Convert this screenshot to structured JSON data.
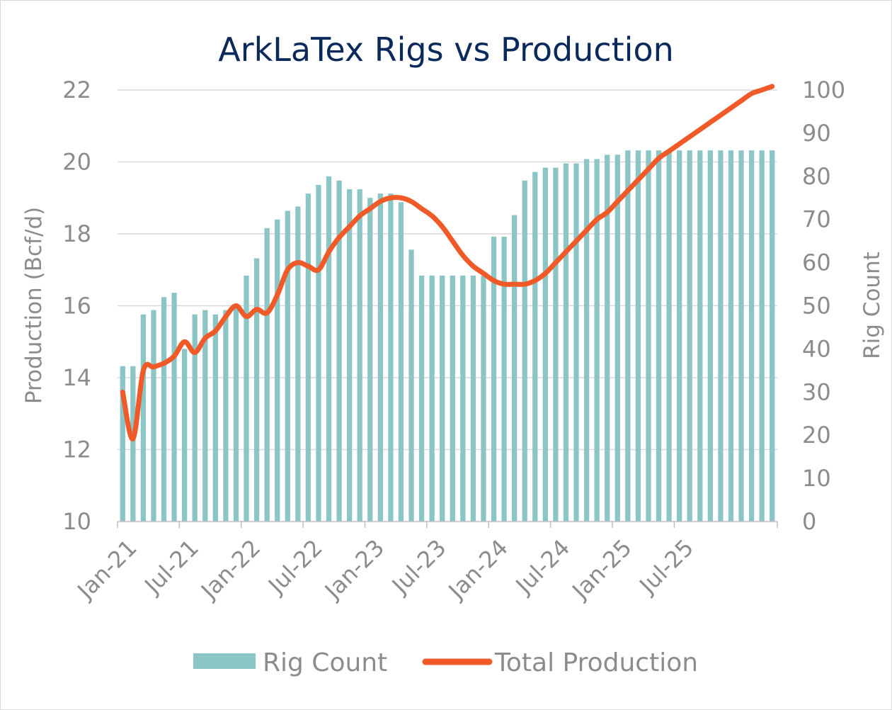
{
  "chart_data": {
    "type": "bar+line",
    "title": "ArkLaTex Rigs vs Production",
    "y_left": {
      "label": "Production (Bcf/d)",
      "range": [
        10,
        22
      ],
      "ticks": [
        "10",
        "12",
        "14",
        "16",
        "18",
        "20",
        "22"
      ]
    },
    "y_right": {
      "label": "Rig Count",
      "range": [
        0,
        100
      ],
      "ticks": [
        "0",
        "10",
        "20",
        "30",
        "40",
        "50",
        "60",
        "70",
        "80",
        "90",
        "100"
      ]
    },
    "x_tick_labels": [
      "Jan-21",
      "Jul-21",
      "Jan-22",
      "Jul-22",
      "Jan-23",
      "Jul-23",
      "Jan-24",
      "Jul-24",
      "Jan-25",
      "Jul-25"
    ],
    "series": [
      {
        "name": "Rig Count",
        "type": "bar",
        "axis": "right",
        "color": "#8cc5c6",
        "values": [
          36,
          36,
          48,
          49,
          52,
          53,
          40,
          48,
          49,
          48,
          49,
          50,
          57,
          61,
          68,
          70,
          72,
          73,
          76,
          78,
          80,
          79,
          77,
          77,
          75,
          76,
          76,
          74,
          63,
          57,
          57,
          57,
          57,
          57,
          57,
          57,
          66,
          66,
          71,
          79,
          81,
          82,
          82,
          83,
          83,
          84,
          84,
          85,
          85,
          86,
          86,
          86,
          86,
          86,
          86,
          86,
          86,
          86,
          86,
          86,
          86,
          86,
          86,
          86
        ]
      },
      {
        "name": "Total Production",
        "type": "line",
        "axis": "left",
        "color": "#f05a28",
        "values": [
          13.6,
          12.3,
          14.2,
          14.3,
          14.4,
          14.6,
          15.0,
          14.7,
          15.1,
          15.3,
          15.7,
          16.0,
          15.7,
          15.9,
          15.8,
          16.3,
          17.0,
          17.2,
          17.1,
          17.0,
          17.5,
          17.9,
          18.2,
          18.5,
          18.7,
          18.9,
          19.0,
          19.0,
          18.9,
          18.7,
          18.5,
          18.2,
          17.8,
          17.4,
          17.1,
          16.9,
          16.7,
          16.6,
          16.6,
          16.6,
          16.7,
          16.9,
          17.2,
          17.5,
          17.8,
          18.1,
          18.4,
          18.6,
          18.9,
          19.2,
          19.5,
          19.8,
          20.1,
          20.3,
          20.5,
          20.7,
          20.9,
          21.1,
          21.3,
          21.5,
          21.7,
          21.9,
          22.0,
          22.1
        ]
      }
    ],
    "legend": {
      "placement": "bottom"
    },
    "grid": true
  }
}
